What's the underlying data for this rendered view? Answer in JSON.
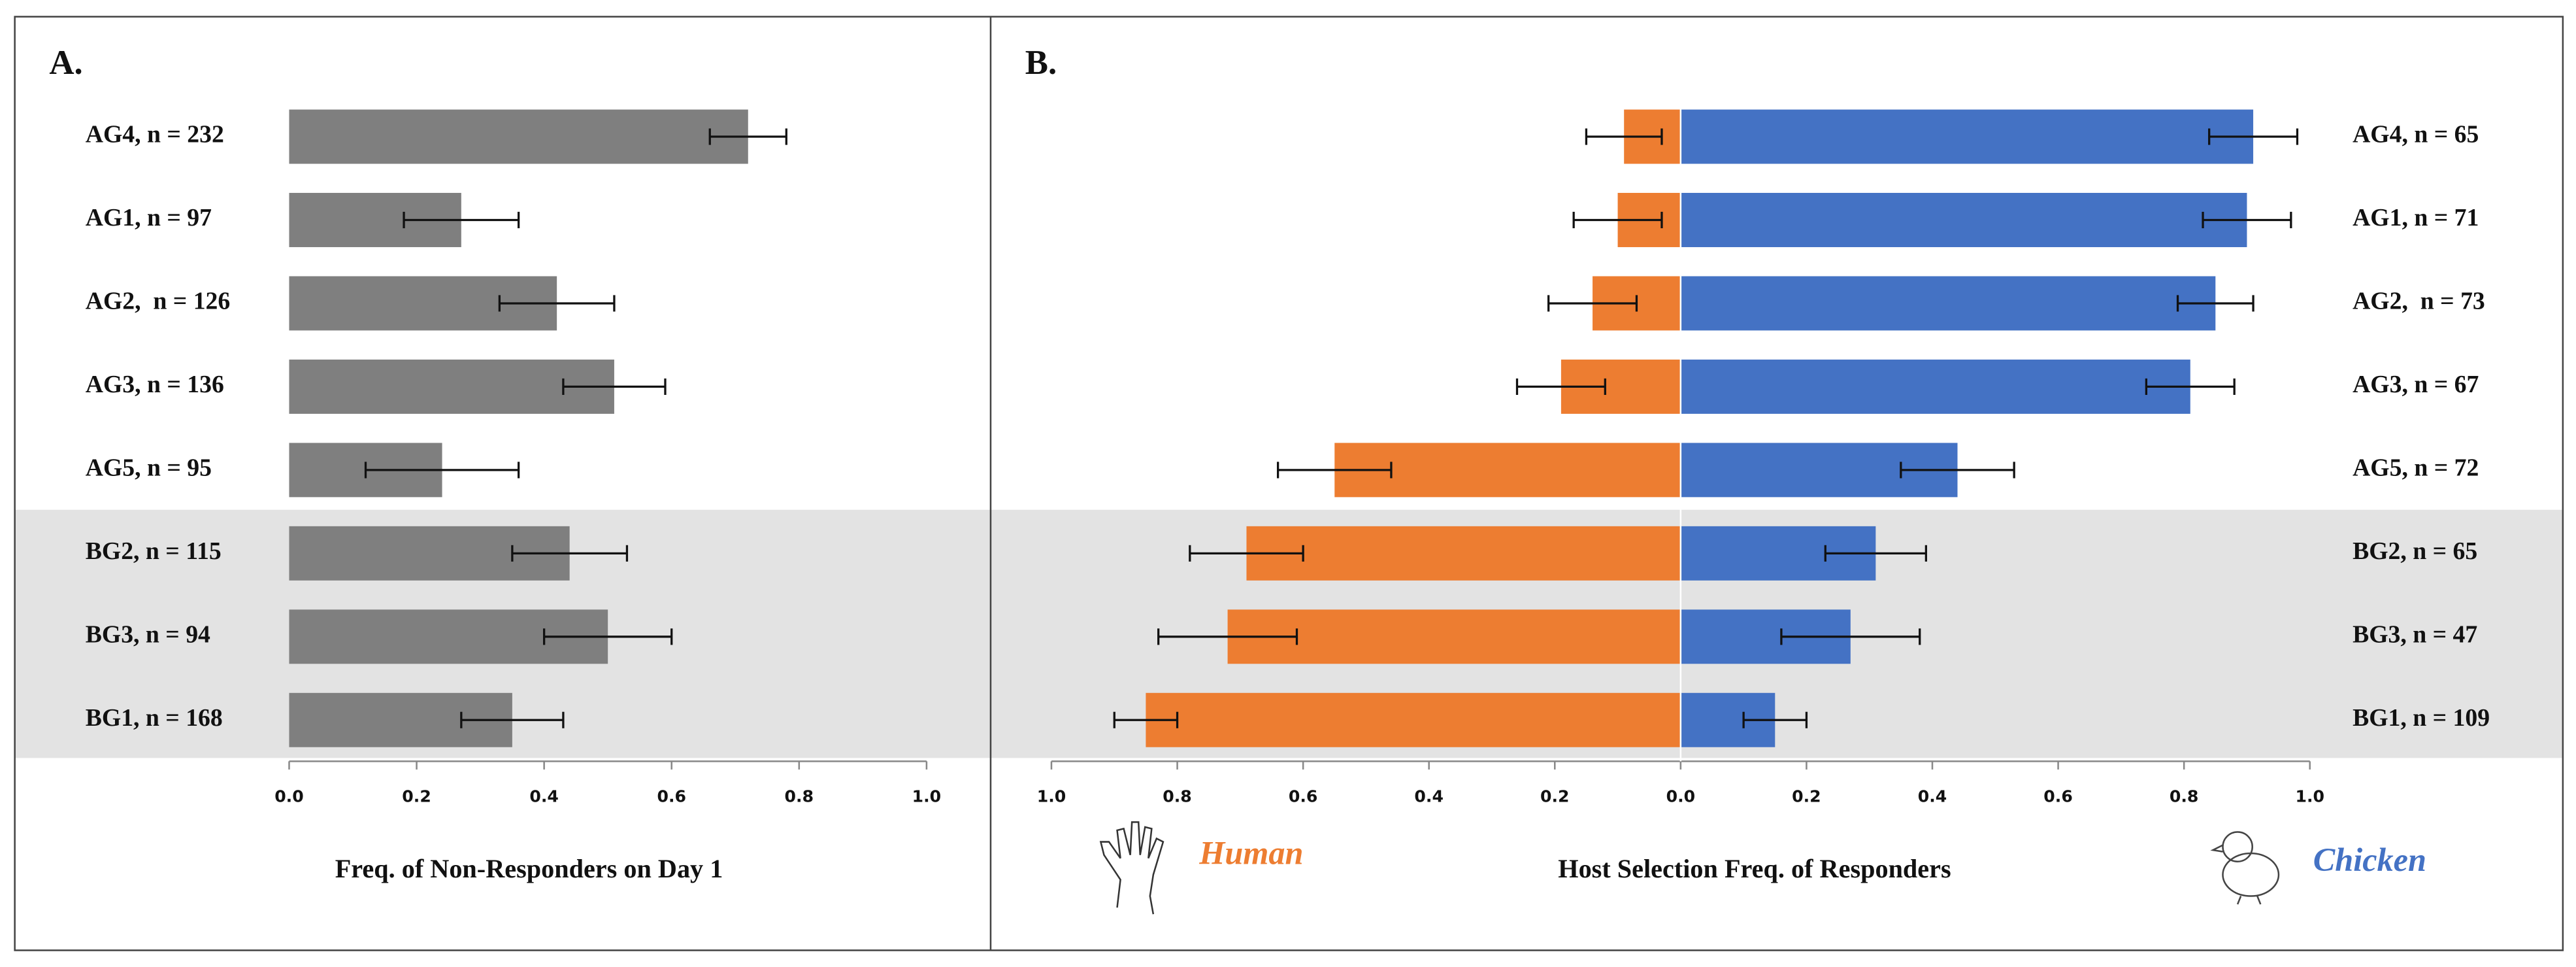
{
  "chart_data": [
    {
      "type": "bar",
      "orientation": "horizontal",
      "panel_label": "A.",
      "x_label": "Freq. of Non-Responders on Day 1",
      "categories": [
        "AG4, n = 232",
        "AG1, n = 97",
        "AG2,  n = 126",
        "AG3, n = 136",
        "AG5, n = 95",
        "BG2, n = 115",
        "BG3, n = 94",
        "BG1, n = 168"
      ],
      "values": [
        0.72,
        0.27,
        0.42,
        0.51,
        0.24,
        0.44,
        0.5,
        0.35
      ],
      "errors": [
        0.06,
        0.09,
        0.09,
        0.08,
        0.12,
        0.09,
        0.1,
        0.08
      ],
      "color": "#7f7f7f",
      "xlim": [
        0,
        1
      ],
      "xticks": [
        {
          "value": 0,
          "label": "0.0"
        },
        0.2,
        0.4,
        0.6,
        0.8,
        {
          "value": 1,
          "label": "1.0"
        }
      ]
    },
    {
      "type": "diverging_bar",
      "panel_label": "B.",
      "x_label": "Host Selection Freq. of Responders",
      "categories": [
        "AG4, n = 65",
        "AG1, n = 71",
        "AG2,  n = 73",
        "AG3, n = 67",
        "AG5, n = 72",
        "BG2, n = 65",
        "BG3, n = 47",
        "BG1, n = 109"
      ],
      "series": [
        {
          "name": "Human",
          "color": "#ed7d31",
          "values": [
            0.09,
            0.1,
            0.14,
            0.19,
            0.55,
            0.69,
            0.72,
            0.85
          ],
          "errors": [
            0.06,
            0.07,
            0.07,
            0.07,
            0.09,
            0.09,
            0.11,
            0.05
          ]
        },
        {
          "name": "Chicken",
          "color": "#4472c4",
          "values": [
            0.91,
            0.9,
            0.85,
            0.81,
            0.44,
            0.31,
            0.27,
            0.15
          ],
          "errors": [
            0.07,
            0.07,
            0.06,
            0.07,
            0.09,
            0.08,
            0.11,
            0.05
          ]
        }
      ],
      "xlim": [
        -1,
        1
      ],
      "xticks": [
        {
          "value": -1,
          "label": "1.0"
        },
        {
          "value": -0.8,
          "label": "0.8"
        },
        {
          "value": -0.6,
          "label": "0.6"
        },
        {
          "value": -0.4,
          "label": "0.4"
        },
        {
          "value": -0.2,
          "label": "0.2"
        },
        {
          "value": 0,
          "label": "0.0"
        },
        {
          "value": 0.2,
          "label": "0.2"
        },
        {
          "value": 0.4,
          "label": "0.4"
        },
        {
          "value": 0.6,
          "label": "0.6"
        },
        {
          "value": 0.8,
          "label": "0.8"
        },
        {
          "value": 1,
          "label": "1.0"
        }
      ]
    }
  ]
}
